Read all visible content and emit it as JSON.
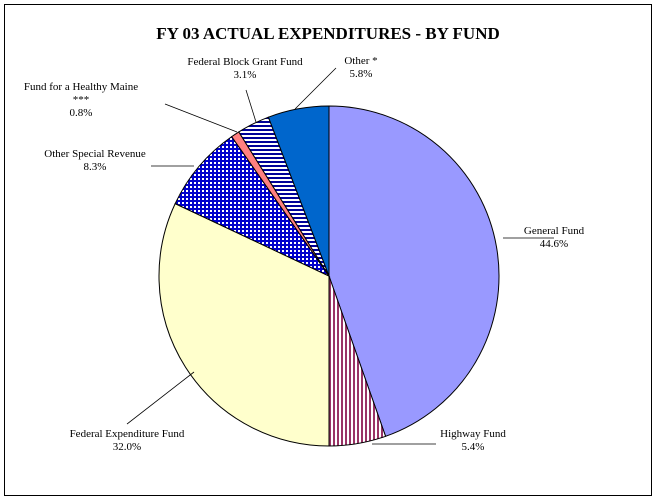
{
  "chart_data": {
    "type": "pie",
    "title": "FY 03 ACTUAL EXPENDITURES - BY FUND",
    "slices": [
      {
        "name": "General Fund",
        "value": 44.6,
        "label": "44.6%",
        "color": "#9999FF",
        "pattern": "solid"
      },
      {
        "name": "Highway Fund",
        "value": 5.4,
        "label": "5.4%",
        "color": "#993366",
        "pattern": "vertical-lines"
      },
      {
        "name": "Federal Expenditure Fund",
        "value": 32.0,
        "label": "32.0%",
        "color": "#FFFFCC",
        "pattern": "solid"
      },
      {
        "name": "Other Special Revenue",
        "value": 8.3,
        "label": "8.3%",
        "color": "#0000CC",
        "pattern": "grid"
      },
      {
        "name": "Fund for a Healthy Maine ***",
        "value": 0.8,
        "label": "0.8%",
        "color": "#FF8080",
        "pattern": "solid"
      },
      {
        "name": "Federal Block Grant Fund",
        "value": 3.1,
        "label": "3.1%",
        "color": "#000099",
        "pattern": "horizontal-lines"
      },
      {
        "name": "Other *",
        "value": 5.8,
        "label": "5.8%",
        "color": "#0066CC",
        "pattern": "solid"
      }
    ]
  }
}
